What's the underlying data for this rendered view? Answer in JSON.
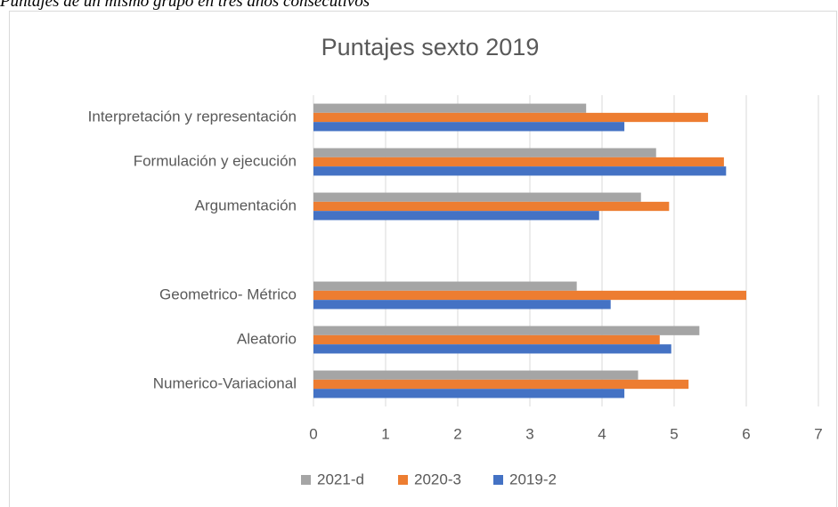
{
  "caption": "Puntajes de un mismo grupo en tres años consecutivos",
  "chart_data": {
    "type": "hbar",
    "title": "Puntajes sexto 2019",
    "categories": [
      "Interpretación y representación",
      "Formulación y ejecución",
      "Argumentación",
      null,
      "Geometrico- Métrico",
      "Aleatorio",
      "Numerico-Variacional"
    ],
    "series": [
      {
        "name": "2021-d",
        "color": "#a5a5a5",
        "values": [
          3.78,
          4.75,
          4.54,
          null,
          3.65,
          5.35,
          4.5
        ]
      },
      {
        "name": "2020-3",
        "color": "#ed7d31",
        "values": [
          5.47,
          5.69,
          4.93,
          null,
          6.0,
          4.8,
          5.2
        ]
      },
      {
        "name": "2019-2",
        "color": "#4472c4",
        "values": [
          4.31,
          5.72,
          3.96,
          null,
          4.12,
          4.96,
          4.31
        ]
      }
    ],
    "xlim": [
      0,
      7
    ],
    "xticks": [
      0,
      1,
      2,
      3,
      4,
      5,
      6,
      7
    ],
    "grid": true,
    "legend": "bottom"
  }
}
